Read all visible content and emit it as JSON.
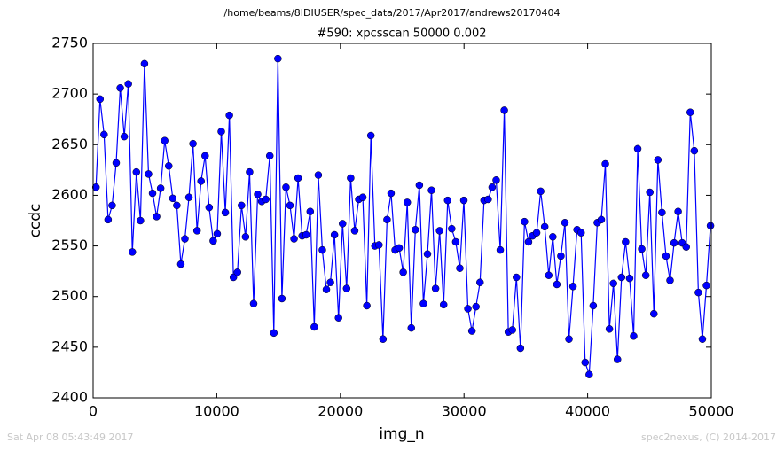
{
  "chart_data": {
    "type": "line",
    "title": "/home/beams/8IDIUSER/spec_data/2017/Apr2017/andrews20170404",
    "subtitle": "#590: xpcsscan 50000 0.002",
    "xlabel": "img_n",
    "ylabel": "ccdc",
    "color": "#0000ff",
    "xlim": [
      0,
      50000
    ],
    "ylim": [
      2400,
      2750
    ],
    "xticks": [
      0,
      10000,
      20000,
      30000,
      40000,
      50000
    ],
    "yticks": [
      2400,
      2450,
      2500,
      2550,
      2600,
      2650,
      2700,
      2750
    ],
    "x": [
      230,
      557,
      884,
      1211,
      1538,
      1865,
      2192,
      2519,
      2846,
      3173,
      3500,
      3827,
      4154,
      4481,
      4808,
      5135,
      5462,
      5789,
      6116,
      6443,
      6770,
      7097,
      7424,
      7751,
      8078,
      8405,
      8732,
      9059,
      9386,
      9713,
      10040,
      10367,
      10694,
      11021,
      11348,
      11675,
      12002,
      12329,
      12656,
      12983,
      13310,
      13637,
      13964,
      14291,
      14618,
      14945,
      15272,
      15599,
      15926,
      16253,
      16580,
      16907,
      17234,
      17561,
      17888,
      18215,
      18542,
      18869,
      19196,
      19523,
      19850,
      20177,
      20504,
      20831,
      21158,
      21485,
      21812,
      22139,
      22466,
      22793,
      23120,
      23447,
      23774,
      24101,
      24428,
      24755,
      25082,
      25409,
      25736,
      26063,
      26390,
      26717,
      27044,
      27371,
      27698,
      28025,
      28352,
      28679,
      29006,
      29333,
      29660,
      29987,
      30314,
      30641,
      30968,
      31295,
      31622,
      31949,
      32276,
      32603,
      32930,
      33257,
      33584,
      33911,
      34238,
      34565,
      34892,
      35219,
      35546,
      35873,
      36200,
      36527,
      36854,
      37181,
      37508,
      37835,
      38162,
      38489,
      38816,
      39143,
      39470,
      39797,
      40124,
      40451,
      40778,
      41105,
      41432,
      41759,
      42086,
      42413,
      42740,
      43067,
      43394,
      43721,
      44048,
      44375,
      44702,
      45029,
      45356,
      45683,
      46010,
      46337,
      46664,
      46991,
      47318,
      47645,
      47972,
      48299,
      48626,
      48953,
      49280,
      49607,
      49934
    ],
    "values": [
      2608,
      2695,
      2660,
      2576,
      2590,
      2632,
      2706,
      2658,
      2710,
      2544,
      2623,
      2575,
      2730,
      2621,
      2602,
      2579,
      2607,
      2654,
      2629,
      2597,
      2590,
      2532,
      2557,
      2598,
      2651,
      2565,
      2614,
      2639,
      2588,
      2555,
      2562,
      2663,
      2583,
      2679,
      2519,
      2524,
      2590,
      2559,
      2623,
      2493,
      2601,
      2594,
      2596,
      2639,
      2464,
      2735,
      2498,
      2608,
      2590,
      2557,
      2617,
      2560,
      2561,
      2584,
      2470,
      2620,
      2546,
      2507,
      2514,
      2561,
      2479,
      2572,
      2508,
      2617,
      2565,
      2596,
      2598,
      2491,
      2659,
      2550,
      2551,
      2458,
      2576,
      2602,
      2546,
      2548,
      2524,
      2593,
      2469,
      2566,
      2610,
      2493,
      2542,
      2605,
      2508,
      2565,
      2492,
      2595,
      2567,
      2554,
      2528,
      2595,
      2488,
      2466,
      2490,
      2514,
      2595,
      2596,
      2608,
      2615,
      2546,
      2684,
      2465,
      2467,
      2519,
      2449,
      2574,
      2554,
      2560,
      2563,
      2604,
      2569,
      2521,
      2559,
      2512,
      2540,
      2573,
      2458,
      2510,
      2566,
      2563,
      2435,
      2423,
      2491,
      2573,
      2576,
      2631,
      2468,
      2513,
      2438,
      2519,
      2554,
      2518,
      2461,
      2646,
      2547,
      2521,
      2603,
      2483,
      2635,
      2583,
      2540,
      2516,
      2553,
      2584,
      2553,
      2549,
      2682,
      2644,
      2504,
      2458,
      2511,
      2570
    ]
  },
  "footer": {
    "left": "Sat Apr 08 05:43:49 2017",
    "right": "spec2nexus, (C) 2014-2017"
  }
}
